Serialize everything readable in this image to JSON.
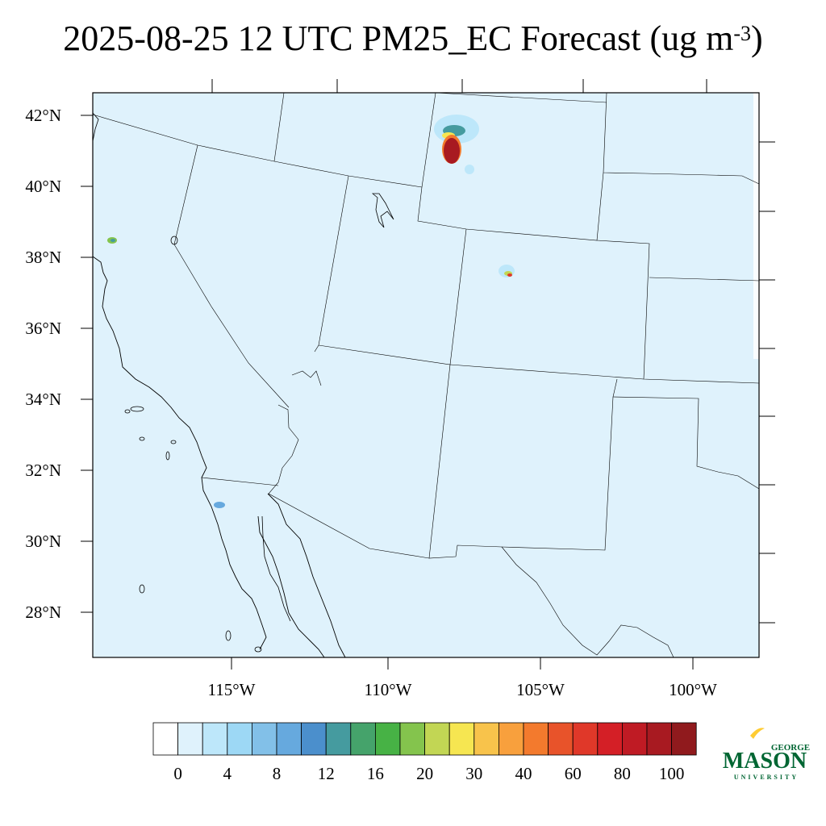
{
  "title": {
    "main": "2025-08-25 12 UTC PM25_EC Forecast (ug m",
    "exp": "-3",
    "close": ")"
  },
  "lat_labels": [
    "42°N",
    "40°N",
    "38°N",
    "36°N",
    "34°N",
    "32°N",
    "30°N",
    "28°N"
  ],
  "lon_labels": [
    "115°W",
    "110°W",
    "105°W",
    "100°W"
  ],
  "colorbar": {
    "colors": [
      "#ffffff",
      "#dff2fc",
      "#bde7fa",
      "#9dd8f5",
      "#82c0e8",
      "#66a9de",
      "#4b8fcc",
      "#459b9f",
      "#45a36b",
      "#47b245",
      "#84c44d",
      "#c2d654",
      "#f6e651",
      "#f8c34b",
      "#f8a03d",
      "#f37a2d",
      "#e8532a",
      "#e03829",
      "#d41f26",
      "#bf1b24",
      "#a81a21",
      "#901a1d"
    ],
    "labels": [
      "0",
      "4",
      "8",
      "12",
      "16",
      "20",
      "30",
      "40",
      "60",
      "80",
      "100"
    ]
  },
  "logo": {
    "top": "GEORGE",
    "main": "MASON",
    "bottom": "UNIVERSITY"
  },
  "colors": {
    "background_fill": "#dff2fc",
    "border": "#000000",
    "logo_green": "#006633",
    "logo_gold": "#ffcc33"
  }
}
